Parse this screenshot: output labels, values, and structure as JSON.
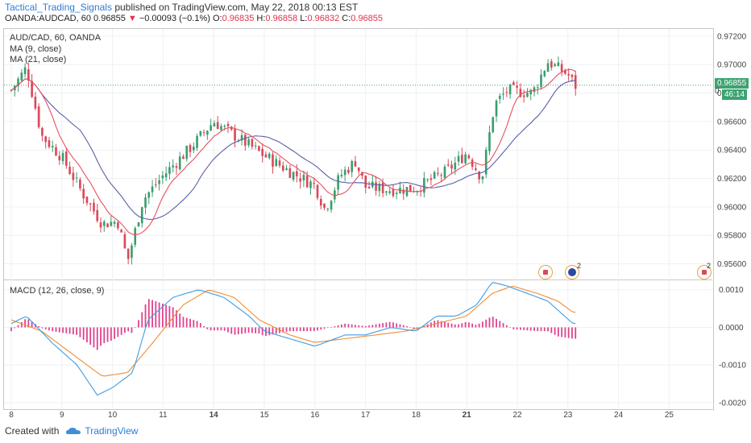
{
  "header": {
    "author": "Tactical_Trading_Signals",
    "published_text": "published on TradingView.com, May 22, 2018 00:13 EST",
    "symbol": "OANDA:AUDCAD, 60",
    "last_price": "0.96855",
    "change": "−0.00093 (−0.1%)",
    "open_label": "O:",
    "open_value": "0.96835",
    "high_label": "H:",
    "high_value": "0.96858",
    "low_label": "L:",
    "low_value": "0.96832",
    "close_label": "C:",
    "close_value": "0.96855"
  },
  "legend": {
    "symbol_line": "AUD/CAD, 60, OANDA",
    "ma9": "MA (9, close)",
    "ma21": "MA (21, close)",
    "macd": "MACD (12, 26, close, 9)"
  },
  "price_tag": {
    "price": "0.96855",
    "countdown": "46:14",
    "marker": "0"
  },
  "event_badges": [
    "2",
    "2"
  ],
  "footer": {
    "created_with": "Created with",
    "brand": "TradingView"
  },
  "colors": {
    "up": "#3a9e6e",
    "down": "#d9495a",
    "ma9": "#e8515f",
    "ma21": "#5a5fa8",
    "macd_line": "#3d9de3",
    "signal_line": "#f08d35",
    "histogram": "#e0428e",
    "price_tag": "#3ca372",
    "countdown_tag": "#3ca372",
    "grid": "#eef0f3"
  },
  "chart_data": [
    {
      "type": "candlestick",
      "title": "AUD/CAD, 60, OANDA",
      "x_ticks": [
        "8",
        "9",
        "10",
        "11",
        "14",
        "15",
        "16",
        "17",
        "18",
        "21",
        "22",
        "23",
        "24",
        "25"
      ],
      "y_ticks": [
        "0.97200",
        "0.97000",
        "0.96800",
        "0.96600",
        "0.96400",
        "0.96200",
        "0.96000",
        "0.95800",
        "0.95600"
      ],
      "ylim": [
        0.9549,
        0.9725
      ],
      "series_names": [
        "MA (9, close)",
        "MA (21, close)"
      ],
      "ohlc_keypoints": [
        {
          "day": 8.0,
          "close": 0.9682
        },
        {
          "day": 8.3,
          "close": 0.9698
        },
        {
          "day": 8.6,
          "close": 0.965
        },
        {
          "day": 9.0,
          "close": 0.9635
        },
        {
          "day": 9.4,
          "close": 0.961
        },
        {
          "day": 9.8,
          "close": 0.9588
        },
        {
          "day": 10.1,
          "close": 0.959
        },
        {
          "day": 10.3,
          "close": 0.9562
        },
        {
          "day": 10.6,
          "close": 0.9605
        },
        {
          "day": 11.0,
          "close": 0.9622
        },
        {
          "day": 11.5,
          "close": 0.964
        },
        {
          "day": 12.0,
          "close": 0.966
        },
        {
          "day": 12.5,
          "close": 0.9648
        },
        {
          "day": 13.0,
          "close": 0.9636
        },
        {
          "day": 13.5,
          "close": 0.9625
        },
        {
          "day": 14.0,
          "close": 0.9615
        },
        {
          "day": 14.2,
          "close": 0.9598
        },
        {
          "day": 14.5,
          "close": 0.9622
        },
        {
          "day": 14.8,
          "close": 0.9632
        },
        {
          "day": 15.0,
          "close": 0.9614
        },
        {
          "day": 15.5,
          "close": 0.9612
        },
        {
          "day": 16.0,
          "close": 0.9613
        },
        {
          "day": 16.6,
          "close": 0.9625
        },
        {
          "day": 17.0,
          "close": 0.9638
        },
        {
          "day": 17.3,
          "close": 0.962
        },
        {
          "day": 17.55,
          "close": 0.9672
        },
        {
          "day": 17.8,
          "close": 0.9682
        },
        {
          "day": 18.3,
          "close": 0.968
        },
        {
          "day": 18.6,
          "close": 0.9702
        },
        {
          "day": 19.0,
          "close": 0.9693
        },
        {
          "day": 19.15,
          "close": 0.9685
        }
      ]
    },
    {
      "type": "macd",
      "title": "MACD (12, 26, close, 9)",
      "y_ticks": [
        "0.0010",
        "0.0000",
        "-0.0010",
        "-0.0020"
      ],
      "ylim": [
        -0.00215,
        0.00125
      ],
      "series_names": [],
      "macd_keypoints": [
        {
          "day": 8.0,
          "value": 0.0001
        },
        {
          "day": 8.3,
          "value": 0.0003
        },
        {
          "day": 8.8,
          "value": -0.0004
        },
        {
          "day": 9.3,
          "value": -0.001
        },
        {
          "day": 9.7,
          "value": -0.0018
        },
        {
          "day": 10.0,
          "value": -0.0016
        },
        {
          "day": 10.4,
          "value": -0.0012
        },
        {
          "day": 10.7,
          "value": 0.0002
        },
        {
          "day": 11.2,
          "value": 0.0008
        },
        {
          "day": 11.7,
          "value": 0.001
        },
        {
          "day": 12.2,
          "value": 0.0008
        },
        {
          "day": 12.7,
          "value": 0.0003
        },
        {
          "day": 13.0,
          "value": -0.0001
        },
        {
          "day": 13.5,
          "value": -0.0003
        },
        {
          "day": 14.0,
          "value": -0.0005
        },
        {
          "day": 14.2,
          "value": -0.0004
        },
        {
          "day": 14.6,
          "value": -0.0002
        },
        {
          "day": 15.0,
          "value": -0.0002
        },
        {
          "day": 15.5,
          "value": 0.0
        },
        {
          "day": 16.0,
          "value": -0.0001
        },
        {
          "day": 16.4,
          "value": 0.0003
        },
        {
          "day": 16.8,
          "value": 0.0003
        },
        {
          "day": 17.2,
          "value": 0.0006
        },
        {
          "day": 17.5,
          "value": 0.0012
        },
        {
          "day": 17.8,
          "value": 0.0011
        },
        {
          "day": 18.2,
          "value": 0.0009
        },
        {
          "day": 18.6,
          "value": 0.0007
        },
        {
          "day": 19.1,
          "value": 0.0001
        }
      ],
      "signal_keypoints": [
        {
          "day": 8.0,
          "value": 0.0002
        },
        {
          "day": 8.6,
          "value": -0.0001
        },
        {
          "day": 9.2,
          "value": -0.0007
        },
        {
          "day": 9.8,
          "value": -0.0013
        },
        {
          "day": 10.3,
          "value": -0.0012
        },
        {
          "day": 10.8,
          "value": -0.0004
        },
        {
          "day": 11.4,
          "value": 0.0006
        },
        {
          "day": 11.9,
          "value": 0.001
        },
        {
          "day": 12.4,
          "value": 0.0008
        },
        {
          "day": 12.9,
          "value": 0.0002
        },
        {
          "day": 13.5,
          "value": -0.0002
        },
        {
          "day": 14.0,
          "value": -0.0004
        },
        {
          "day": 14.6,
          "value": -0.0003
        },
        {
          "day": 15.2,
          "value": -0.0002
        },
        {
          "day": 15.8,
          "value": -0.0001
        },
        {
          "day": 16.4,
          "value": 0.0001
        },
        {
          "day": 17.0,
          "value": 0.0003
        },
        {
          "day": 17.5,
          "value": 0.0009
        },
        {
          "day": 17.9,
          "value": 0.0011
        },
        {
          "day": 18.4,
          "value": 0.0009
        },
        {
          "day": 18.8,
          "value": 0.0007
        },
        {
          "day": 19.1,
          "value": 0.0004
        }
      ]
    }
  ]
}
